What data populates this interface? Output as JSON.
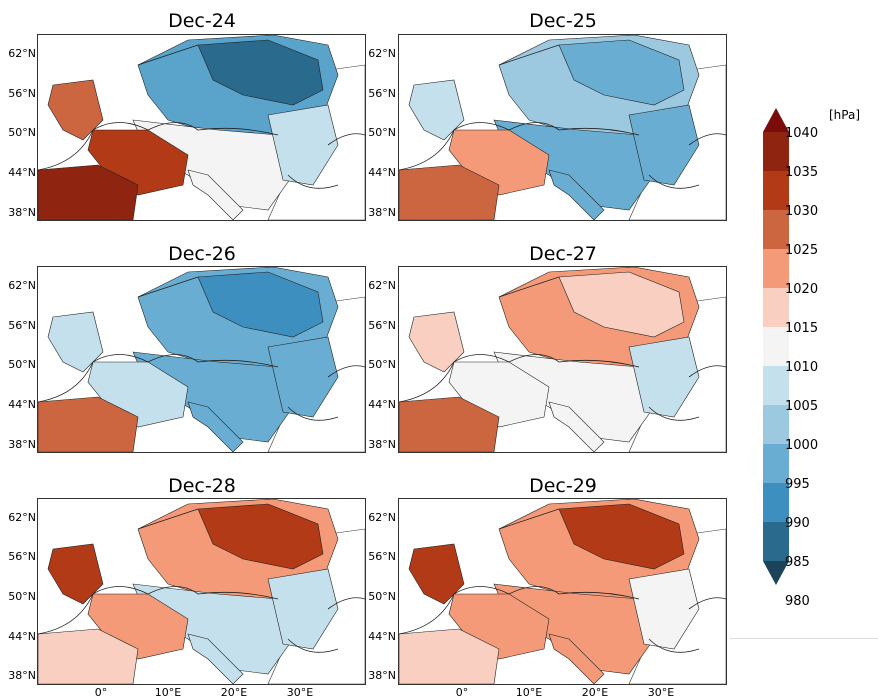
{
  "panels": [
    {
      "title": "Dec-24"
    },
    {
      "title": "Dec-25"
    },
    {
      "title": "Dec-26"
    },
    {
      "title": "Dec-27"
    },
    {
      "title": "Dec-28"
    },
    {
      "title": "Dec-29"
    }
  ],
  "lat_labels": [
    "62°N",
    "56°N",
    "50°N",
    "44°N",
    "38°N"
  ],
  "lon_labels": [
    "0°",
    "10°E",
    "20°E",
    "30°E"
  ],
  "colorbar": {
    "unit": "[hPa]",
    "levels": [
      "1040",
      "1035",
      "1030",
      "1025",
      "1020",
      "1015",
      "1010",
      "1005",
      "1000",
      "995",
      "990",
      "985",
      "980"
    ],
    "colors": {
      "c1040": "#7a0c0c",
      "c1035": "#8f2410",
      "c1030": "#b23a16",
      "c1025": "#cc6640",
      "c1020": "#f59a78",
      "c1015": "#f8cfc0",
      "c1010": "#f4f4f4",
      "c1005": "#c4e0ec",
      "c1000": "#9cc8e0",
      "c995": "#69aed2",
      "c990": "#3d8fc0",
      "c985": "#2a6a8c",
      "c980": "#1b435a"
    }
  },
  "map_fields": [
    {
      "name": "Dec-24",
      "north": "#5aa4cc",
      "scand": "#2a6a8c",
      "center": "#f4f4f4",
      "iberia": "#8f2410",
      "france": "#b23a16",
      "east": "#c4e0ec",
      "uk": "#cc6640"
    },
    {
      "name": "Dec-25",
      "north": "#9cc8e0",
      "scand": "#69aed2",
      "center": "#69aed2",
      "iberia": "#cc6640",
      "france": "#f59a78",
      "east": "#69aed2",
      "uk": "#c4e0ec"
    },
    {
      "name": "Dec-26",
      "north": "#69aed2",
      "scand": "#3d8fc0",
      "center": "#69aed2",
      "iberia": "#cc6640",
      "france": "#c4e0ec",
      "east": "#69aed2",
      "uk": "#c4e0ec"
    },
    {
      "name": "Dec-27",
      "north": "#f59a78",
      "scand": "#f8cfc0",
      "center": "#f4f4f4",
      "iberia": "#cc6640",
      "france": "#f4f4f4",
      "east": "#c4e0ec",
      "uk": "#f8cfc0"
    },
    {
      "name": "Dec-28",
      "north": "#f59a78",
      "scand": "#b23a16",
      "center": "#c4e0ec",
      "iberia": "#f8cfc0",
      "france": "#f59a78",
      "east": "#c4e0ec",
      "uk": "#b23a16"
    },
    {
      "name": "Dec-29",
      "north": "#f59a78",
      "scand": "#b23a16",
      "center": "#f59a78",
      "iberia": "#f8cfc0",
      "france": "#f59a78",
      "east": "#f4f4f4",
      "uk": "#b23a16"
    }
  ]
}
